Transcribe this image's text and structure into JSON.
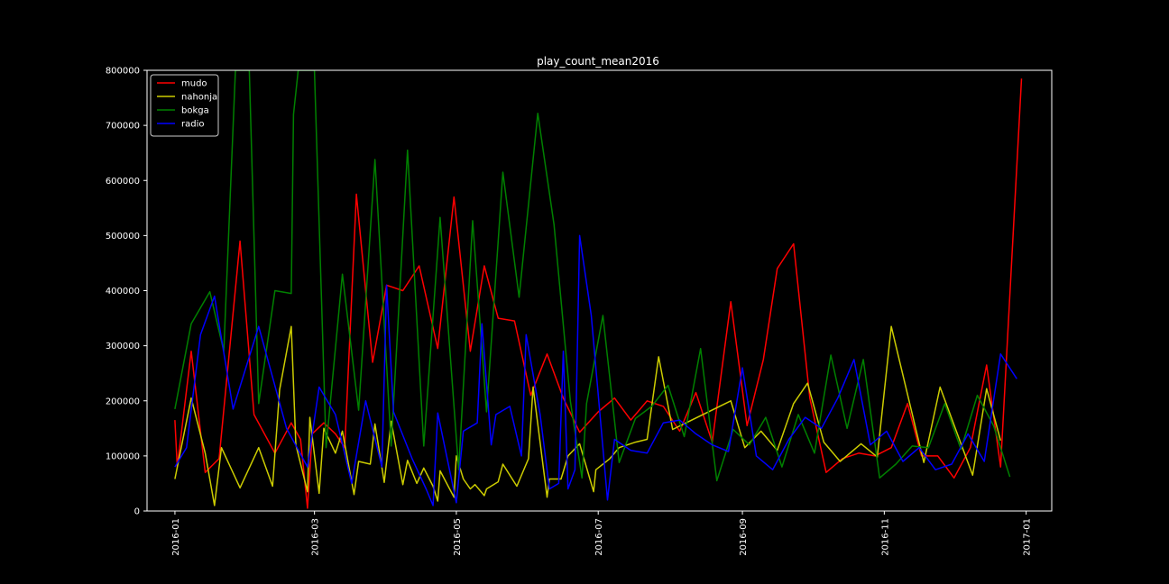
{
  "chart_data": {
    "type": "line",
    "title": "play_count_mean2016",
    "xlabel": "",
    "ylabel": "",
    "xlim": [
      "2015-12-20",
      "2017-01-12"
    ],
    "ylim": [
      0,
      800000
    ],
    "grid": false,
    "legend_position": "top-left",
    "x_ticks": [
      {
        "date": "2016-01-01",
        "label": "2016-01"
      },
      {
        "date": "2016-03-01",
        "label": "2016-03"
      },
      {
        "date": "2016-05-01",
        "label": "2016-05"
      },
      {
        "date": "2016-07-01",
        "label": "2016-07"
      },
      {
        "date": "2016-09-01",
        "label": "2016-09"
      },
      {
        "date": "2016-11-01",
        "label": "2016-11"
      },
      {
        "date": "2017-01-01",
        "label": "2017-01"
      }
    ],
    "y_ticks": [
      {
        "value": 0,
        "label": "0"
      },
      {
        "value": 100000,
        "label": "100000"
      },
      {
        "value": 200000,
        "label": "200000"
      },
      {
        "value": 300000,
        "label": "300000"
      },
      {
        "value": 400000,
        "label": "400000"
      },
      {
        "value": 500000,
        "label": "500000"
      },
      {
        "value": 600000,
        "label": "600000"
      },
      {
        "value": 700000,
        "label": "700000"
      },
      {
        "value": 800000,
        "label": "800000"
      }
    ],
    "series": [
      {
        "name": "mudo",
        "color": "#ff0000",
        "points": [
          [
            "2016-01-01",
            165000
          ],
          [
            "2016-01-02",
            80000
          ],
          [
            "2016-01-08",
            290000
          ],
          [
            "2016-01-14",
            70000
          ],
          [
            "2016-01-20",
            95000
          ],
          [
            "2016-01-29",
            490000
          ],
          [
            "2016-02-04",
            175000
          ],
          [
            "2016-02-13",
            105000
          ],
          [
            "2016-02-20",
            160000
          ],
          [
            "2016-02-24",
            130000
          ],
          [
            "2016-02-27",
            5000
          ],
          [
            "2016-02-29",
            140000
          ],
          [
            "2016-03-05",
            160000
          ],
          [
            "2016-03-10",
            140000
          ],
          [
            "2016-03-14",
            115000
          ],
          [
            "2016-03-19",
            575000
          ],
          [
            "2016-03-26",
            270000
          ],
          [
            "2016-04-01",
            410000
          ],
          [
            "2016-04-08",
            400000
          ],
          [
            "2016-04-15",
            445000
          ],
          [
            "2016-04-23",
            295000
          ],
          [
            "2016-04-30",
            570000
          ],
          [
            "2016-05-07",
            290000
          ],
          [
            "2016-05-13",
            445000
          ],
          [
            "2016-05-19",
            350000
          ],
          [
            "2016-05-26",
            345000
          ],
          [
            "2016-06-02",
            210000
          ],
          [
            "2016-06-09",
            285000
          ],
          [
            "2016-06-16",
            205000
          ],
          [
            "2016-06-23",
            143000
          ],
          [
            "2016-07-01",
            180000
          ],
          [
            "2016-07-08",
            205000
          ],
          [
            "2016-07-15",
            165000
          ],
          [
            "2016-07-22",
            200000
          ],
          [
            "2016-07-29",
            190000
          ],
          [
            "2016-08-05",
            145000
          ],
          [
            "2016-08-12",
            215000
          ],
          [
            "2016-08-19",
            125000
          ],
          [
            "2016-08-27",
            380000
          ],
          [
            "2016-09-03",
            155000
          ],
          [
            "2016-09-10",
            275000
          ],
          [
            "2016-09-16",
            440000
          ],
          [
            "2016-09-23",
            485000
          ],
          [
            "2016-09-30",
            205000
          ],
          [
            "2016-10-07",
            70000
          ],
          [
            "2016-10-14",
            95000
          ],
          [
            "2016-10-21",
            105000
          ],
          [
            "2016-10-28",
            100000
          ],
          [
            "2016-11-04",
            115000
          ],
          [
            "2016-11-11",
            195000
          ],
          [
            "2016-11-17",
            100000
          ],
          [
            "2016-11-24",
            100000
          ],
          [
            "2016-12-01",
            60000
          ],
          [
            "2016-12-08",
            115000
          ],
          [
            "2016-12-15",
            265000
          ],
          [
            "2016-12-21",
            80000
          ],
          [
            "2016-12-30",
            785000
          ]
        ]
      },
      {
        "name": "nahonja",
        "color": "#cccc00",
        "points": [
          [
            "2016-01-01",
            58000
          ],
          [
            "2016-01-08",
            205000
          ],
          [
            "2016-01-14",
            105000
          ],
          [
            "2016-01-18",
            10000
          ],
          [
            "2016-01-21",
            115000
          ],
          [
            "2016-01-29",
            42000
          ],
          [
            "2016-02-06",
            115000
          ],
          [
            "2016-02-12",
            45000
          ],
          [
            "2016-02-15",
            220000
          ],
          [
            "2016-02-20",
            335000
          ],
          [
            "2016-02-22",
            120000
          ],
          [
            "2016-02-27",
            35000
          ],
          [
            "2016-02-28",
            170000
          ],
          [
            "2016-03-03",
            32000
          ],
          [
            "2016-03-05",
            150000
          ],
          [
            "2016-03-10",
            105000
          ],
          [
            "2016-03-13",
            145000
          ],
          [
            "2016-03-18",
            30000
          ],
          [
            "2016-03-20",
            90000
          ],
          [
            "2016-03-25",
            85000
          ],
          [
            "2016-03-27",
            158000
          ],
          [
            "2016-03-31",
            52000
          ],
          [
            "2016-04-03",
            163000
          ],
          [
            "2016-04-08",
            48000
          ],
          [
            "2016-04-10",
            92000
          ],
          [
            "2016-04-14",
            50000
          ],
          [
            "2016-04-17",
            78000
          ],
          [
            "2016-04-21",
            45000
          ],
          [
            "2016-04-23",
            18000
          ],
          [
            "2016-04-24",
            73000
          ],
          [
            "2016-04-30",
            25000
          ],
          [
            "2016-05-01",
            100000
          ],
          [
            "2016-05-04",
            58000
          ],
          [
            "2016-05-07",
            40000
          ],
          [
            "2016-05-09",
            48000
          ],
          [
            "2016-05-13",
            28000
          ],
          [
            "2016-05-14",
            40000
          ],
          [
            "2016-05-19",
            53000
          ],
          [
            "2016-05-21",
            85000
          ],
          [
            "2016-05-27",
            45000
          ],
          [
            "2016-06-01",
            95000
          ],
          [
            "2016-06-03",
            225000
          ],
          [
            "2016-06-09",
            25000
          ],
          [
            "2016-06-10",
            58000
          ],
          [
            "2016-06-15",
            58000
          ],
          [
            "2016-06-18",
            100000
          ],
          [
            "2016-06-23",
            122000
          ],
          [
            "2016-06-29",
            35000
          ],
          [
            "2016-06-30",
            75000
          ],
          [
            "2016-07-06",
            95000
          ],
          [
            "2016-07-10",
            115000
          ],
          [
            "2016-07-17",
            125000
          ],
          [
            "2016-07-22",
            130000
          ],
          [
            "2016-07-27",
            280000
          ],
          [
            "2016-08-02",
            148000
          ],
          [
            "2016-08-27",
            200000
          ],
          [
            "2016-09-02",
            115000
          ],
          [
            "2016-09-09",
            145000
          ],
          [
            "2016-09-16",
            110000
          ],
          [
            "2016-09-23",
            195000
          ],
          [
            "2016-09-29",
            232000
          ],
          [
            "2016-10-06",
            125000
          ],
          [
            "2016-10-13",
            90000
          ],
          [
            "2016-10-22",
            122000
          ],
          [
            "2016-10-29",
            98000
          ],
          [
            "2016-11-04",
            335000
          ],
          [
            "2016-11-18",
            88000
          ],
          [
            "2016-11-25",
            225000
          ],
          [
            "2016-12-09",
            65000
          ],
          [
            "2016-12-15",
            222000
          ],
          [
            "2016-12-21",
            128000
          ]
        ]
      },
      {
        "name": "bokga",
        "color": "#008000",
        "points": [
          [
            "2016-01-01",
            185000
          ],
          [
            "2016-01-08",
            340000
          ],
          [
            "2016-01-16",
            398000
          ],
          [
            "2016-01-22",
            290000
          ],
          [
            "2016-01-27",
            800000
          ],
          [
            "2016-02-02",
            800000
          ],
          [
            "2016-02-06",
            195000
          ],
          [
            "2016-02-13",
            400000
          ],
          [
            "2016-02-20",
            395000
          ],
          [
            "2016-02-21",
            720000
          ],
          [
            "2016-02-23",
            800000
          ],
          [
            "2016-02-27",
            800000
          ],
          [
            "2016-03-01",
            800000
          ],
          [
            "2016-03-06",
            115000
          ],
          [
            "2016-03-13",
            430000
          ],
          [
            "2016-03-20",
            183000
          ],
          [
            "2016-03-27",
            638000
          ],
          [
            "2016-04-03",
            118000
          ],
          [
            "2016-04-10",
            655000
          ],
          [
            "2016-04-17",
            118000
          ],
          [
            "2016-04-24",
            533000
          ],
          [
            "2016-05-02",
            75000
          ],
          [
            "2016-05-08",
            527000
          ],
          [
            "2016-05-14",
            180000
          ],
          [
            "2016-05-21",
            615000
          ],
          [
            "2016-05-28",
            388000
          ],
          [
            "2016-06-05",
            722000
          ],
          [
            "2016-06-12",
            520000
          ],
          [
            "2016-06-19",
            200000
          ],
          [
            "2016-06-24",
            60000
          ],
          [
            "2016-06-26",
            195000
          ],
          [
            "2016-07-03",
            355000
          ],
          [
            "2016-07-10",
            88000
          ],
          [
            "2016-07-17",
            168000
          ],
          [
            "2016-07-24",
            190000
          ],
          [
            "2016-07-31",
            228000
          ],
          [
            "2016-08-07",
            135000
          ],
          [
            "2016-08-14",
            295000
          ],
          [
            "2016-08-21",
            55000
          ],
          [
            "2016-08-28",
            148000
          ],
          [
            "2016-09-04",
            120000
          ],
          [
            "2016-09-11",
            170000
          ],
          [
            "2016-09-18",
            80000
          ],
          [
            "2016-09-25",
            175000
          ],
          [
            "2016-10-02",
            105000
          ],
          [
            "2016-10-09",
            283000
          ],
          [
            "2016-10-16",
            150000
          ],
          [
            "2016-10-23",
            275000
          ],
          [
            "2016-10-30",
            60000
          ],
          [
            "2016-11-06",
            85000
          ],
          [
            "2016-11-13",
            118000
          ],
          [
            "2016-11-20",
            115000
          ],
          [
            "2016-11-27",
            195000
          ],
          [
            "2016-12-04",
            112000
          ],
          [
            "2016-12-11",
            210000
          ],
          [
            "2016-12-18",
            155000
          ],
          [
            "2016-12-25",
            62000
          ]
        ]
      },
      {
        "name": "radio",
        "color": "#0000ff",
        "points": [
          [
            "2016-01-01",
            80000
          ],
          [
            "2016-01-06",
            115000
          ],
          [
            "2016-01-12",
            320000
          ],
          [
            "2016-01-18",
            390000
          ],
          [
            "2016-01-26",
            185000
          ],
          [
            "2016-02-06",
            335000
          ],
          [
            "2016-02-18",
            150000
          ],
          [
            "2016-02-27",
            80000
          ],
          [
            "2016-03-03",
            225000
          ],
          [
            "2016-03-10",
            175000
          ],
          [
            "2016-03-17",
            50000
          ],
          [
            "2016-03-23",
            200000
          ],
          [
            "2016-03-30",
            80000
          ],
          [
            "2016-04-01",
            410000
          ],
          [
            "2016-04-04",
            180000
          ],
          [
            "2016-04-12",
            95000
          ],
          [
            "2016-04-18",
            40000
          ],
          [
            "2016-04-21",
            10000
          ],
          [
            "2016-04-23",
            178000
          ],
          [
            "2016-05-01",
            15000
          ],
          [
            "2016-05-04",
            145000
          ],
          [
            "2016-05-10",
            160000
          ],
          [
            "2016-05-12",
            340000
          ],
          [
            "2016-05-16",
            120000
          ],
          [
            "2016-05-18",
            175000
          ],
          [
            "2016-05-24",
            190000
          ],
          [
            "2016-05-29",
            100000
          ],
          [
            "2016-05-31",
            320000
          ],
          [
            "2016-06-06",
            175000
          ],
          [
            "2016-06-10",
            40000
          ],
          [
            "2016-06-14",
            50000
          ],
          [
            "2016-06-16",
            290000
          ],
          [
            "2016-06-18",
            40000
          ],
          [
            "2016-06-21",
            75000
          ],
          [
            "2016-06-23",
            500000
          ],
          [
            "2016-06-28",
            355000
          ],
          [
            "2016-07-05",
            20000
          ],
          [
            "2016-07-08",
            130000
          ],
          [
            "2016-07-15",
            110000
          ],
          [
            "2016-07-22",
            105000
          ],
          [
            "2016-07-29",
            160000
          ],
          [
            "2016-08-05",
            165000
          ],
          [
            "2016-08-12",
            140000
          ],
          [
            "2016-08-19",
            120000
          ],
          [
            "2016-08-26",
            108000
          ],
          [
            "2016-09-01",
            260000
          ],
          [
            "2016-09-07",
            100000
          ],
          [
            "2016-09-14",
            75000
          ],
          [
            "2016-09-21",
            130000
          ],
          [
            "2016-09-28",
            170000
          ],
          [
            "2016-10-05",
            150000
          ],
          [
            "2016-10-12",
            205000
          ],
          [
            "2016-10-19",
            275000
          ],
          [
            "2016-10-26",
            120000
          ],
          [
            "2016-11-02",
            145000
          ],
          [
            "2016-11-09",
            90000
          ],
          [
            "2016-11-16",
            115000
          ],
          [
            "2016-11-23",
            75000
          ],
          [
            "2016-11-30",
            85000
          ],
          [
            "2016-12-07",
            140000
          ],
          [
            "2016-12-14",
            90000
          ],
          [
            "2016-12-21",
            285000
          ],
          [
            "2016-12-28",
            240000
          ]
        ]
      }
    ]
  }
}
